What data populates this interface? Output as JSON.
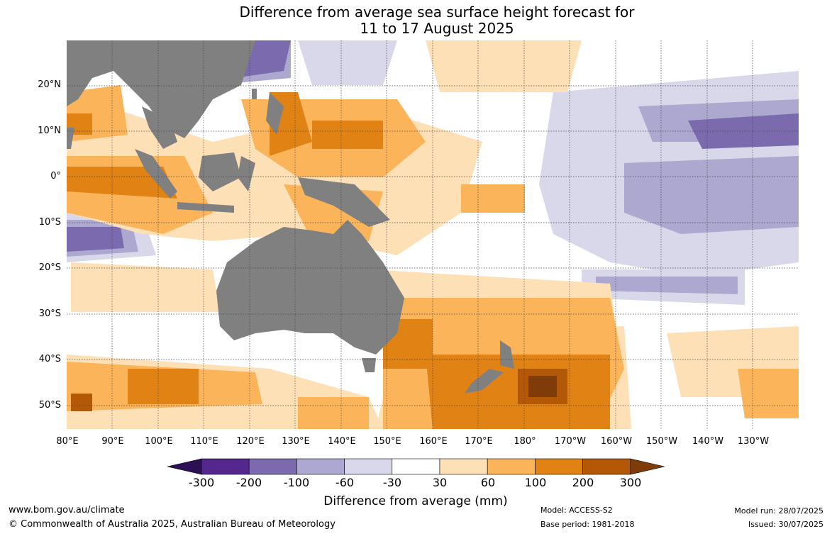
{
  "title": {
    "line1": "Difference from average sea surface height forecast for",
    "line2": "11 to 17 August 2025"
  },
  "axes": {
    "lat_labels": [
      "20°N",
      "10°N",
      "0°",
      "10°S",
      "20°S",
      "30°S",
      "40°S",
      "50°S"
    ],
    "lon_labels": [
      "80°E",
      "90°E",
      "100°E",
      "110°E",
      "120°E",
      "130°E",
      "140°E",
      "150°E",
      "160°E",
      "170°E",
      "180°",
      "170°W",
      "160°W",
      "150°W",
      "140°W",
      "130°W"
    ]
  },
  "colorbar": {
    "title": "Difference from average (mm)",
    "ticks": [
      "-300",
      "-200",
      "-100",
      "-60",
      "-30",
      "30",
      "60",
      "100",
      "200",
      "300"
    ],
    "colors": [
      "#2d0f55",
      "#54278f",
      "#7b6aae",
      "#aca8d0",
      "#d8d8ea",
      "#ffffff",
      "#fee0b6",
      "#fbb45a",
      "#e08214",
      "#b35806",
      "#7f3b08"
    ]
  },
  "footer": {
    "url": "www.bom.gov.au/climate",
    "copyright": "© Commonwealth of Australia 2025, Australian Bureau of Meteorology",
    "model": "Model: ACCESS-S2",
    "base_period": "Base period: 1981-2018",
    "model_run": "Model run: 28/07/2025",
    "issued": "Issued: 30/07/2025"
  },
  "land_color": "#808080"
}
